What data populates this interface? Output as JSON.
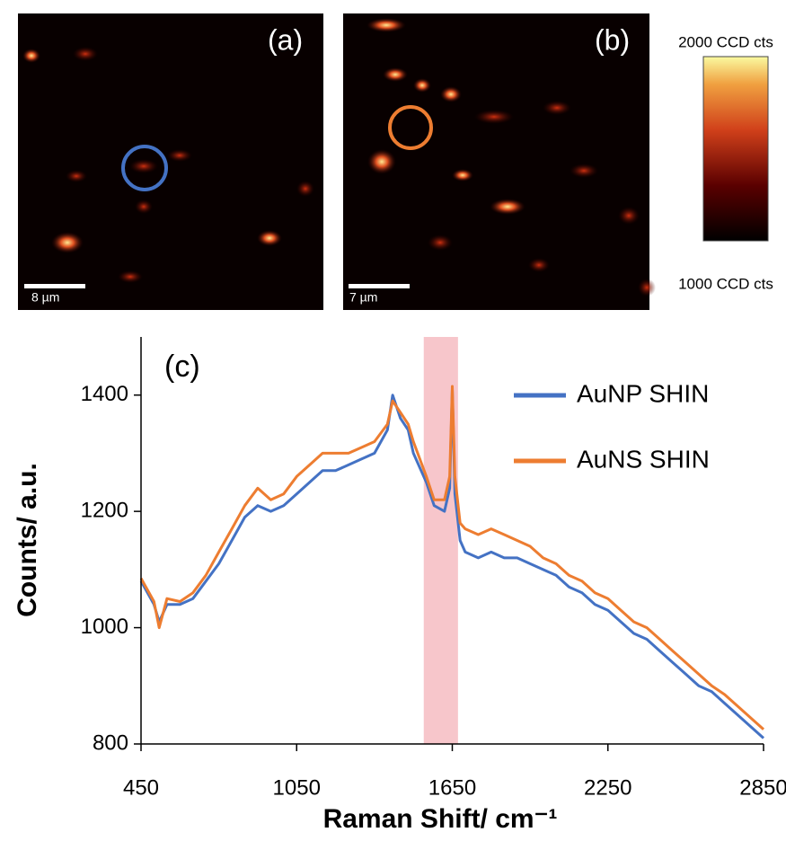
{
  "maps": [
    {
      "label": "(a)",
      "scale_bar": "8 µm"
    },
    {
      "label": "(b)",
      "scale_bar": "7 µm"
    }
  ],
  "colorbar": {
    "max_label": "2000 CCD cts",
    "min_label": "1000 CCD cts"
  },
  "chart_data": {
    "type": "line",
    "annotation": "(c)",
    "x_label": "Raman Shift/ cm⁻¹",
    "y_label": "Counts/ a.u.",
    "xlim": [
      450,
      2850
    ],
    "ylim": [
      800,
      1500
    ],
    "xticks": [
      450,
      1050,
      1650,
      2250,
      2850
    ],
    "yticks": [
      800,
      1000,
      1200,
      1400
    ],
    "highlight": [
      1540,
      1672
    ],
    "highlight_color": "#f7c6cb",
    "x": [
      450,
      500,
      520,
      550,
      600,
      650,
      700,
      750,
      800,
      850,
      900,
      950,
      1000,
      1050,
      1100,
      1150,
      1200,
      1250,
      1300,
      1350,
      1400,
      1420,
      1450,
      1480,
      1500,
      1550,
      1580,
      1620,
      1640,
      1650,
      1660,
      1680,
      1700,
      1750,
      1800,
      1850,
      1900,
      1950,
      2000,
      2050,
      2100,
      2150,
      2200,
      2250,
      2300,
      2350,
      2400,
      2450,
      2500,
      2550,
      2600,
      2650,
      2700,
      2750,
      2800,
      2850
    ],
    "series": [
      {
        "name": "AuNP SHIN",
        "color": "#4472c4",
        "values": [
          1080,
          1040,
          1010,
          1040,
          1040,
          1050,
          1080,
          1110,
          1150,
          1190,
          1210,
          1200,
          1210,
          1230,
          1250,
          1270,
          1270,
          1280,
          1290,
          1300,
          1340,
          1400,
          1360,
          1340,
          1300,
          1250,
          1210,
          1200,
          1240,
          1410,
          1230,
          1150,
          1130,
          1120,
          1130,
          1120,
          1120,
          1110,
          1100,
          1090,
          1070,
          1060,
          1040,
          1030,
          1010,
          990,
          980,
          960,
          940,
          920,
          900,
          890,
          870,
          850,
          830,
          810
        ]
      },
      {
        "name": "AuNS SHIN",
        "color": "#ed7d31",
        "values": [
          1085,
          1045,
          1000,
          1050,
          1045,
          1060,
          1090,
          1130,
          1170,
          1210,
          1240,
          1220,
          1230,
          1260,
          1280,
          1300,
          1300,
          1300,
          1310,
          1320,
          1350,
          1390,
          1370,
          1350,
          1320,
          1260,
          1220,
          1220,
          1260,
          1415,
          1260,
          1180,
          1170,
          1160,
          1170,
          1160,
          1150,
          1140,
          1120,
          1110,
          1090,
          1080,
          1060,
          1050,
          1030,
          1010,
          1000,
          980,
          960,
          940,
          920,
          900,
          885,
          865,
          845,
          825
        ]
      }
    ]
  }
}
